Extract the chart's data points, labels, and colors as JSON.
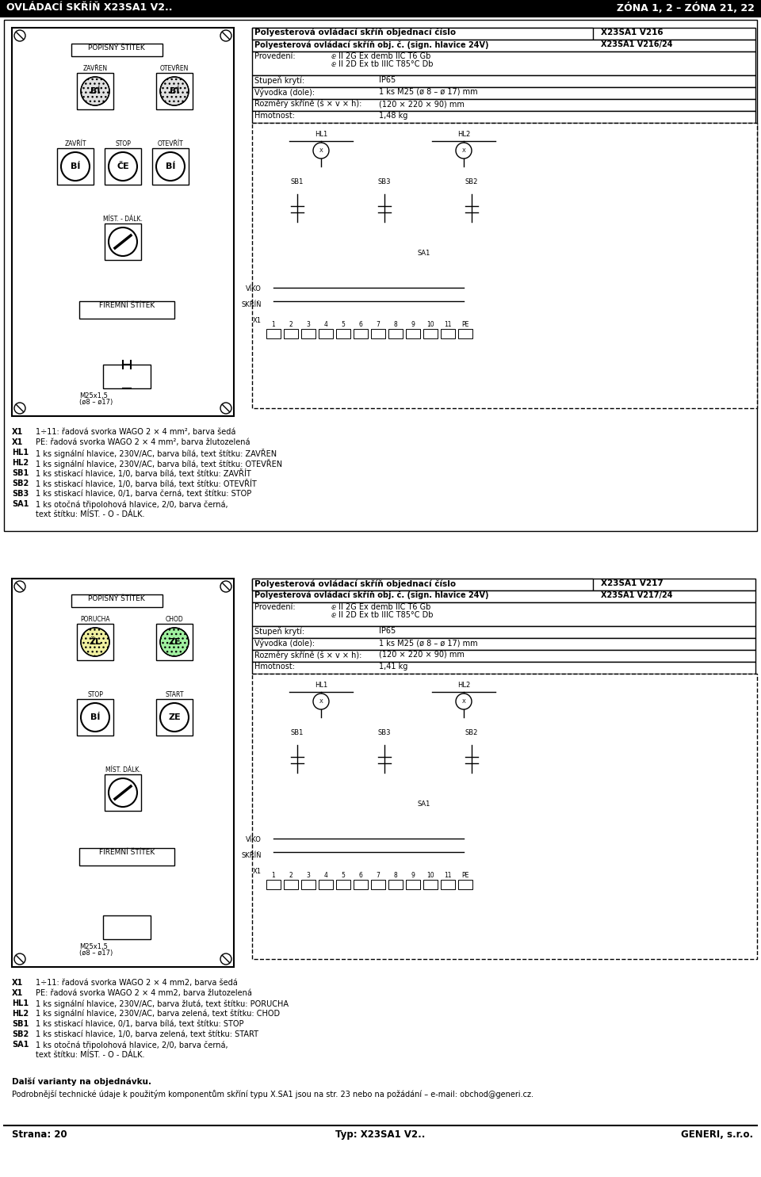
{
  "page_bg": "#ffffff",
  "header_bg": "#000000",
  "header_text_color": "#ffffff",
  "header_left": "OVLÁDACÍ SKŘÍŇ X23SA1 V2..",
  "header_right": "ZÓNA 1, 2 – ZÓNA 21, 22",
  "footer_left": "Strana: 20",
  "footer_center": "Typ: X23SA1 V2..",
  "footer_right": "GENERI, s.r.o.",
  "footer_note": "Podrobnější technické údaje k použitým komponentům skříní typu X.SA1 jsou na str. 23 nebo na požádání – e-mail: obchod@generi.cz.",
  "further_variants": "Další varianty na objednávku.",
  "table1_header1": "Polyesterová ovládací skříň objednací číslo",
  "table1_header2": "X23SA1 V216",
  "table1_row1_label": "Polyesterová ovládací skříň obj. č. (sign. hlavice 24V)",
  "table1_row1_val": "X23SA1 V216/24",
  "table1_provedeni_label": "Provedení:",
  "table1_provedeni_val1": "ⅇ II 2G Ex demb IIC T6 Gb",
  "table1_provedeni_val2": "ⅇ II 2D Ex tb IIIC T85°C Db",
  "table1_stupen_label": "Stupeň krytí:",
  "table1_stupen_val": "IP65",
  "table1_vyvodka_label": "Vývodka (dole):",
  "table1_vyvodka_val": "1 ks M25 (ø 8 – ø 17) mm",
  "table1_rozmery_label": "Rozměry skříně (š × v × h):",
  "table1_rozmery_val": "(120 × 220 × 90) mm",
  "table1_hmotnost_label": "Hmotnost:",
  "table1_hmotnost_val": "1,48 kg",
  "table2_header1": "Polyesterová ovládací skříň objednací číslo",
  "table2_header2": "X23SA1 V217",
  "table2_row1_label": "Polyesterová ovládací skříň obj. č. (sign. hlavice 24V)",
  "table2_row1_val": "X23SA1 V217/24",
  "table2_provedeni_label": "Provedení:",
  "table2_provedeni_val1": "ⅇ II 2G Ex demb IIC T6 Gb",
  "table2_provedeni_val2": "ⅇ II 2D Ex tb IIIC T85°C Db",
  "table2_stupen_label": "Stupeň krytí:",
  "table2_stupen_val": "IP65",
  "table2_vyvodka_label": "Vývodka (dole):",
  "table2_vyvodka_val": "1 ks M25 (ø 8 – ø 17) mm",
  "table2_rozmery_label": "Rozměry skříně (š × v × h):",
  "table2_rozmery_val": "(120 × 220 × 90) mm",
  "table2_hmotnost_label": "Hmotnost:",
  "table2_hmotnost_val": "1,41 kg",
  "legend1": [
    [
      "X1",
      "1÷11: řadová svorka WAGO 2 × 4 mm², barva šedá"
    ],
    [
      "X1",
      "PE: řadová svorka WAGO 2 × 4 mm², barva žlutozelená"
    ],
    [
      "HL1",
      "1 ks signální hlavice, 230V/AC, barva bílá, text štítku: ZAVŘEN"
    ],
    [
      "HL2",
      "1 ks signální hlavice, 230V/AC, barva bílá, text štítku: OTEVŘEN"
    ],
    [
      "SB1",
      "1 ks stiskací hlavice, 1/0, barva bílá, text štítku: ZAVŘÍT"
    ],
    [
      "SB2",
      "1 ks stiskací hlavice, 1/0, barva bílá, text štítku: OTEVŘÍT"
    ],
    [
      "SB3",
      "1 ks stiskací hlavice, 0/1, barva černá, text štítku: STOP"
    ],
    [
      "SA1",
      "1 ks otočná třipolohová hlavice, 2/0, barva černá,"
    ],
    [
      "",
      "text štítku: MÍST. - O - DÁLK."
    ]
  ],
  "legend2": [
    [
      "X1",
      "1÷11: řadová svorka WAGO 2 × 4 mm2, barva šedá"
    ],
    [
      "X1",
      "PE: řadová svorka WAGO 2 × 4 mm2, barva žlutozelená"
    ],
    [
      "HL1",
      "1 ks signální hlavice, 230V/AC, barva žlutá, text štítku: PORUCHA"
    ],
    [
      "HL2",
      "1 ks signální hlavice, 230V/AC, barva zelená, text štítku: CHOD"
    ],
    [
      "SB1",
      "1 ks stiskací hlavice, 0/1, barva bílá, text štítku: STOP"
    ],
    [
      "SB2",
      "1 ks stiskací hlavice, 1/0, barva zelená, text štítku: START"
    ],
    [
      "SA1",
      "1 ks otočná třipolohová hlavice, 2/0, barva černá,"
    ],
    [
      "",
      "text štítku: MÍST. - O - DÁLK."
    ]
  ]
}
